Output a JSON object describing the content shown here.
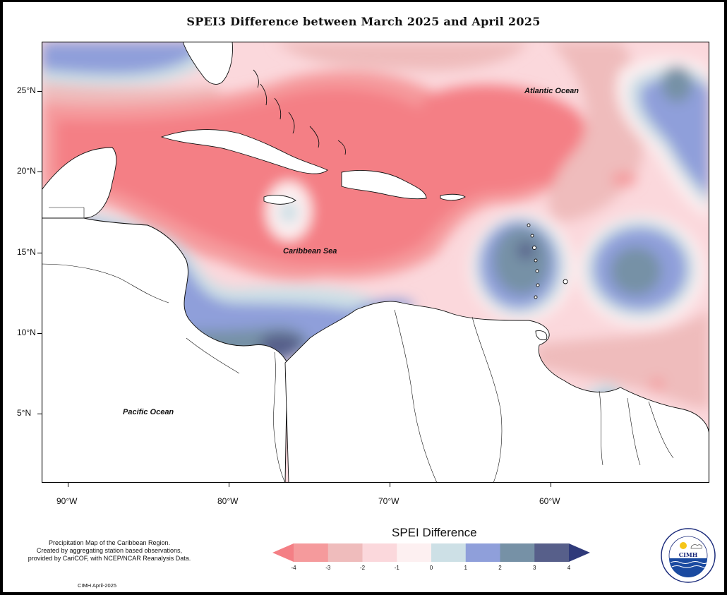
{
  "title": "SPEI3 Difference between March 2025 and April 2025",
  "map": {
    "region": "Caribbean",
    "lat_ticks": [
      {
        "lat": 25,
        "label": "25°N"
      },
      {
        "lat": 20,
        "label": "20°N"
      },
      {
        "lat": 15,
        "label": "15°N"
      },
      {
        "lat": 10,
        "label": "10°N"
      },
      {
        "lat": 5,
        "label": "5°N"
      }
    ],
    "lon_ticks": [
      {
        "lon": -90,
        "label": "90°W"
      },
      {
        "lon": -80,
        "label": "80°W"
      },
      {
        "lon": -70,
        "label": "70°W"
      },
      {
        "lon": -60,
        "label": "60°W"
      }
    ],
    "ocean_labels": {
      "atlantic": "Atlantic Ocean",
      "caribbean": "Caribbean Sea",
      "pacific": "Pacific Ocean"
    }
  },
  "legend": {
    "title": "SPEI Difference",
    "ticks": [
      "-4",
      "-3",
      "-2",
      "-1",
      "0",
      "1",
      "2",
      "3",
      "4"
    ],
    "colors": [
      "#f47f85",
      "#f59a9c",
      "#efbcbc",
      "#fbd8dc",
      "#fdf0f1",
      "#cde0e6",
      "#8f9fda",
      "#7691a6",
      "#575f8a",
      "#2f3a7a"
    ]
  },
  "notes": {
    "line1": "Precipitation Map of the Caribbean Region.",
    "line2": "Created by aggregating station based observations,",
    "line3": "provided by CariCOF, with NCEP/NCAR Reanalysis Data.",
    "credit": "CIMH April-2025"
  },
  "logo": {
    "text": "CIMH",
    "ring_text": "Caribbean Institute for Meteorology and Hydrology"
  }
}
